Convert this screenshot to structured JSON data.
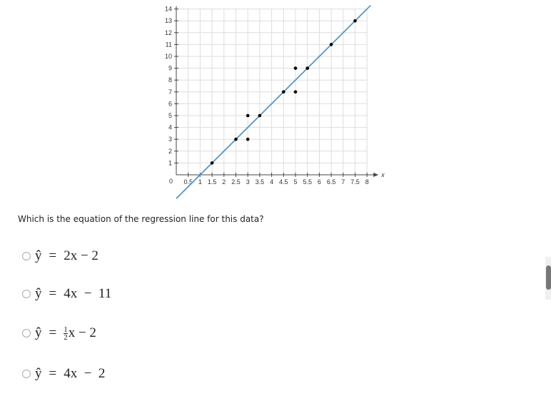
{
  "chart_data": {
    "type": "scatter",
    "xlabel": "x",
    "ylabel": "",
    "xlim": [
      0,
      8
    ],
    "ylim": [
      0,
      14
    ],
    "grid": true,
    "x_ticks": [
      "0.5",
      "1",
      "1.5",
      "2",
      "2.5",
      "3",
      "3.5",
      "4",
      "4.5",
      "5",
      "5.5",
      "6",
      "6.5",
      "7",
      "7.5",
      "8"
    ],
    "y_ticks": [
      "1",
      "2",
      "3",
      "4",
      "5",
      "6",
      "7",
      "8",
      "9",
      "10",
      "11",
      "12",
      "13",
      "14"
    ],
    "origin_label": "0",
    "points": [
      [
        1.5,
        1
      ],
      [
        2.5,
        3
      ],
      [
        3,
        3
      ],
      [
        3,
        5
      ],
      [
        3.5,
        5
      ],
      [
        4.5,
        7
      ],
      [
        5,
        7
      ],
      [
        5,
        9
      ],
      [
        5.5,
        9
      ],
      [
        6.5,
        11
      ],
      [
        7.5,
        13
      ]
    ],
    "regression_line": {
      "slope": 2,
      "intercept": -2,
      "color": "#5b93bd"
    },
    "point_color": "#000000"
  },
  "question": "Which is the equation of the regression line for this data?",
  "options": [
    {
      "yhat": "ŷ",
      "eq": "=",
      "rhs": "2x − 2"
    },
    {
      "yhat": "ŷ",
      "eq": "=",
      "rhs": "4x  −  11"
    },
    {
      "yhat": "ŷ",
      "eq": "=",
      "frac_num": "1",
      "frac_den": "2",
      "rhs": "x − 2"
    },
    {
      "yhat": "ŷ",
      "eq": "=",
      "rhs": "4x  −  2"
    }
  ]
}
